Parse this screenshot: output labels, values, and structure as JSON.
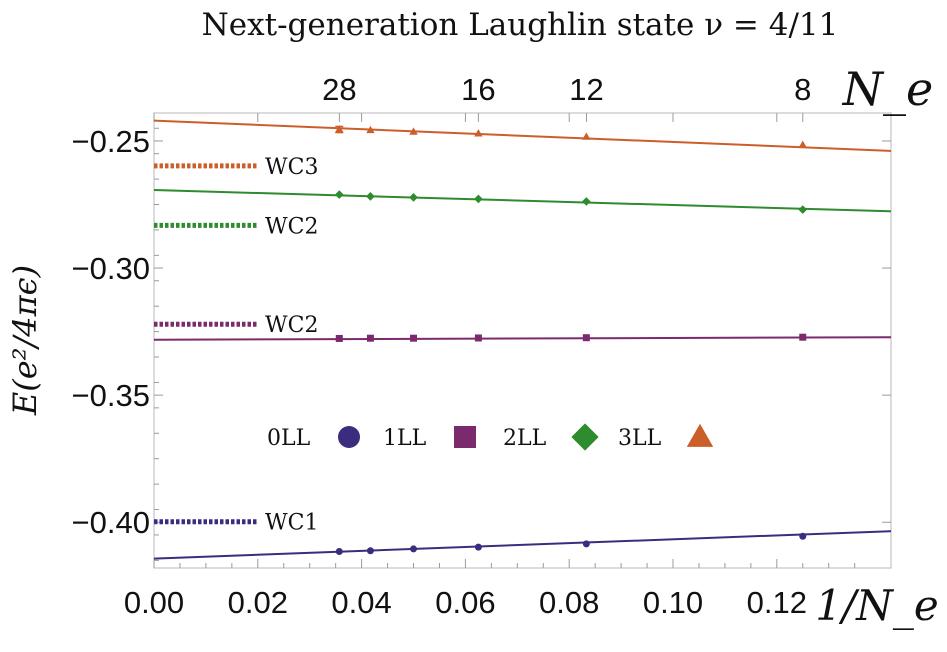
{
  "chart_data": {
    "type": "scatter",
    "title": "Next-generation Laughlin state ν = 4/11",
    "xlabel": "1/N_e",
    "ylabel": "E(e²/4πϵ)",
    "top_axis_label": "N_e",
    "xlim": [
      0.0,
      0.142
    ],
    "ylim": [
      -0.418,
      -0.239
    ],
    "x_ticks": [
      0.0,
      0.02,
      0.04,
      0.06,
      0.08,
      0.1,
      0.12
    ],
    "x_tick_labels": [
      "0.00",
      "0.02",
      "0.04",
      "0.06",
      "0.08",
      "0.10",
      "0.12"
    ],
    "y_ticks": [
      -0.25,
      -0.3,
      -0.35,
      -0.4
    ],
    "y_tick_labels": [
      "-0.25",
      "-0.30",
      "-0.35",
      "-0.40"
    ],
    "top_ticks": [
      28,
      16,
      12,
      8
    ],
    "top_tick_labels": [
      "28",
      "16",
      "12",
      "8"
    ],
    "series": [
      {
        "name": "0LL",
        "marker": "circle",
        "color": "#3b2c7e",
        "x": [
          0.0357,
          0.0417,
          0.05,
          0.0625,
          0.0833,
          0.125
        ],
        "y": [
          -0.4115,
          -0.4112,
          -0.4105,
          -0.4098,
          -0.4085,
          -0.4055
        ],
        "fit": {
          "intercept": -0.4143,
          "slope": 0.076
        }
      },
      {
        "name": "1LL",
        "marker": "square",
        "color": "#7b2a6e",
        "x": [
          0.0357,
          0.0417,
          0.05,
          0.0625,
          0.0833,
          0.125
        ],
        "y": [
          -0.3277,
          -0.3276,
          -0.3276,
          -0.3275,
          -0.3274,
          -0.3272
        ],
        "fit": {
          "intercept": -0.3282,
          "slope": 0.007
        }
      },
      {
        "name": "2LL",
        "marker": "diamond",
        "color": "#2e8b2e",
        "x": [
          0.0357,
          0.0417,
          0.05,
          0.0625,
          0.0833,
          0.125
        ],
        "y": [
          -0.2711,
          -0.2718,
          -0.2722,
          -0.2728,
          -0.2738,
          -0.277
        ],
        "fit": {
          "intercept": -0.2693,
          "slope": -0.059
        }
      },
      {
        "name": "3LL",
        "marker": "triangle",
        "color": "#cc5e2a",
        "x": [
          0.0357,
          0.0417,
          0.05,
          0.0625,
          0.0833,
          0.125
        ],
        "y": [
          -0.2454,
          -0.2457,
          -0.2463,
          -0.247,
          -0.2483,
          -0.2515
        ],
        "fit": {
          "intercept": -0.242,
          "slope": -0.084
        },
        "error_bar_x": 0.0357,
        "error_bar_y": [
          -0.2443,
          -0.2467
        ]
      }
    ],
    "wigner_crystals": [
      {
        "label": "WC3",
        "y": -0.2598,
        "color": "#cc5e2a"
      },
      {
        "label": "WC2",
        "y": -0.2832,
        "color": "#2e8b2e"
      },
      {
        "label": "WC2",
        "y": -0.3221,
        "color": "#7b2a6e"
      },
      {
        "label": "WC1",
        "y": -0.3998,
        "color": "#3b2c7e"
      }
    ],
    "wc_line_xrange": [
      0.0,
      0.02
    ],
    "legend_position": "center",
    "grid": false
  }
}
